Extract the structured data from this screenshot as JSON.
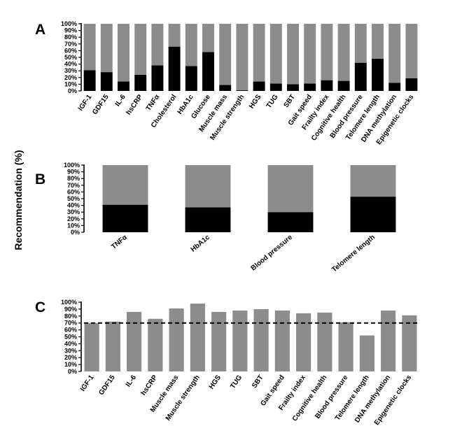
{
  "colors": {
    "dark": "#000000",
    "gray": "#8c8c8c",
    "axis": "#000000"
  },
  "shared_ylabel": "Recommendation (%)",
  "chart_data": [
    {
      "panel": "A",
      "type": "bar",
      "stacked": true,
      "ylim": [
        0,
        100
      ],
      "yticks": [
        "0%",
        "10%",
        "20%",
        "30%",
        "40%",
        "50%",
        "60%",
        "70%",
        "80%",
        "90%",
        "100%"
      ],
      "categories": [
        "IGF-1",
        "GDF15",
        "IL-6",
        "hsCRP",
        "TNFα",
        "Cholesterol",
        "HbA1c",
        "Glucose",
        "Muscle mass",
        "Muscle strength",
        "HGS",
        "TUG",
        "SBT",
        "Gait speed",
        "Frailty index",
        "Cognitive health",
        "Blood pressure",
        "Telomere length",
        "DNA methylation",
        "Epigenetic clocks"
      ],
      "series": [
        {
          "color": "#000000",
          "values": [
            31,
            28,
            14,
            24,
            38,
            66,
            37,
            58,
            9,
            1,
            14,
            11,
            10,
            11,
            16,
            15,
            42,
            48,
            12,
            19
          ]
        },
        {
          "color": "#8c8c8c",
          "values": [
            69,
            72,
            86,
            76,
            62,
            34,
            63,
            42,
            91,
            99,
            86,
            89,
            90,
            89,
            84,
            85,
            58,
            52,
            88,
            81
          ]
        }
      ]
    },
    {
      "panel": "B",
      "type": "bar",
      "stacked": true,
      "ylim": [
        0,
        100
      ],
      "yticks": [
        "0%",
        "10%",
        "20%",
        "30%",
        "40%",
        "50%",
        "60%",
        "70%",
        "80%",
        "90%",
        "100%"
      ],
      "categories": [
        "TNFα",
        "HbA1c",
        "Blood pressure",
        "Telomere length"
      ],
      "series": [
        {
          "color": "#000000",
          "values": [
            41,
            37,
            30,
            53
          ]
        },
        {
          "color": "#8c8c8c",
          "values": [
            59,
            63,
            70,
            47
          ]
        }
      ]
    },
    {
      "panel": "C",
      "type": "bar",
      "stacked": false,
      "ylim": [
        0,
        100
      ],
      "yticks": [
        "0%",
        "10%",
        "20%",
        "30%",
        "40%",
        "50%",
        "60%",
        "70%",
        "80%",
        "90%",
        "100%"
      ],
      "reference_line": 70,
      "categories": [
        "IGF-1",
        "GDF15",
        "IL-6",
        "hsCRP",
        "Muscle mass",
        "Muscle strength",
        "HGS",
        "TUG",
        "SBT",
        "Gait speed",
        "Frailty index",
        "Cognitive health",
        "Blood pressure",
        "Telomere length",
        "DNA methylation",
        "Epigenetic clocks"
      ],
      "series": [
        {
          "color": "#8c8c8c",
          "values": [
            70,
            72,
            86,
            76,
            91,
            98,
            86,
            88,
            90,
            88,
            84,
            85,
            71,
            52,
            88,
            81
          ]
        }
      ]
    }
  ]
}
